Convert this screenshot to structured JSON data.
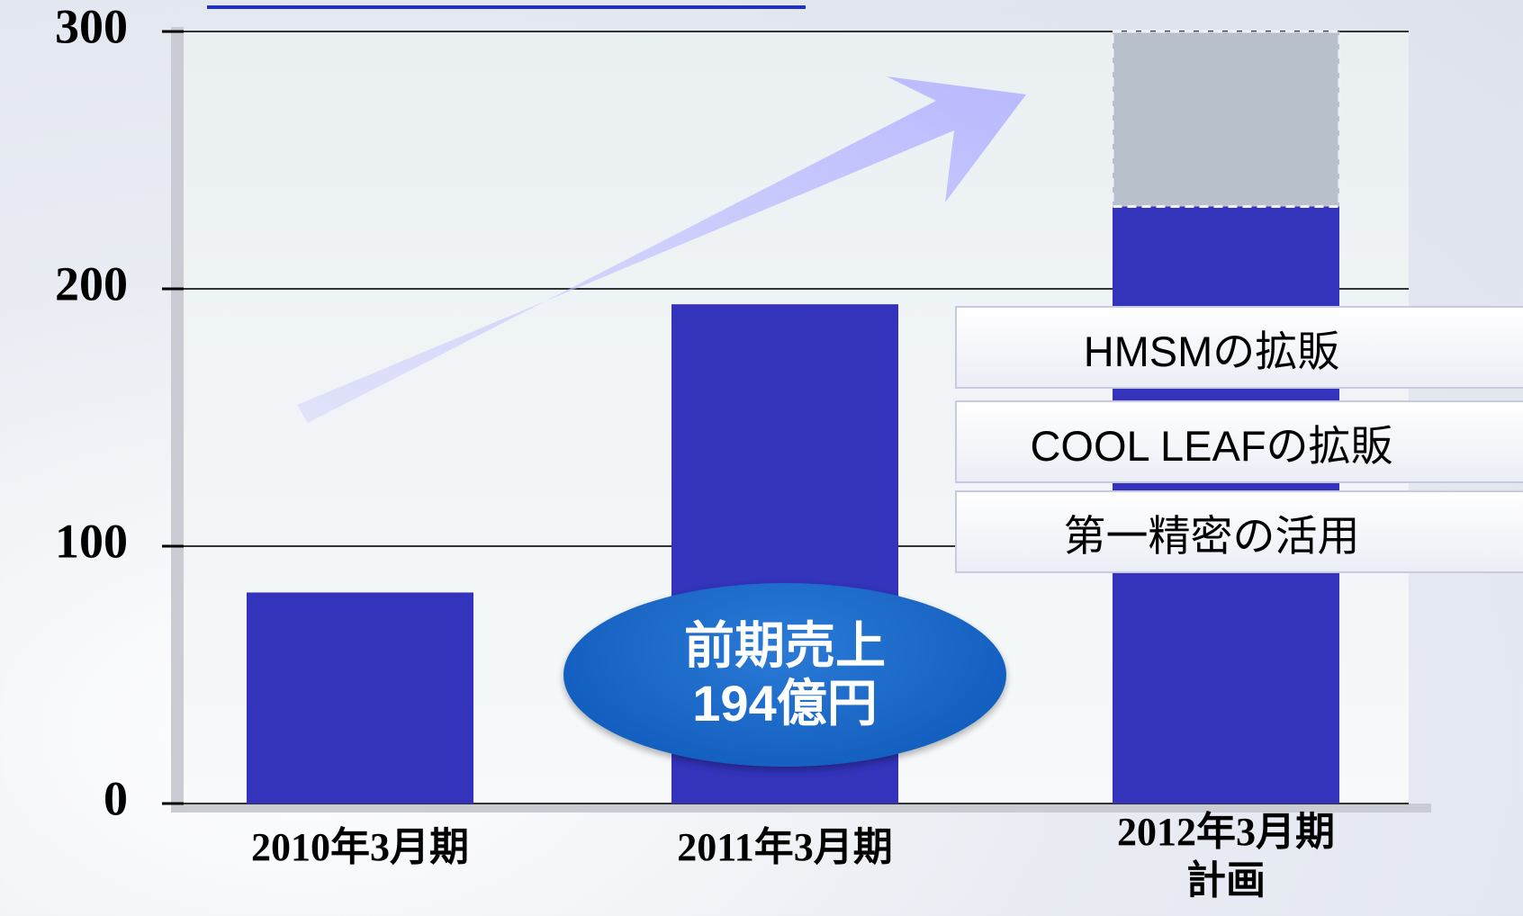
{
  "chart_data": {
    "type": "bar",
    "categories": [
      "2010年3月期",
      "2011年3月期",
      "2012年3月期\n計画"
    ],
    "series": [
      {
        "color": "#3333bb",
        "values": [
          82,
          194,
          232
        ]
      },
      {
        "color": "#b8c0cc",
        "values": [
          null,
          null,
          68
        ]
      }
    ],
    "ylim": [
      0,
      300
    ],
    "yticks": [
      0,
      100,
      200,
      300
    ],
    "grid": true,
    "annotations": [
      "前期売上\n194億円",
      "HMSMの拡販",
      "COOL LEAFの拡販",
      "第一精密の活用"
    ]
  }
}
